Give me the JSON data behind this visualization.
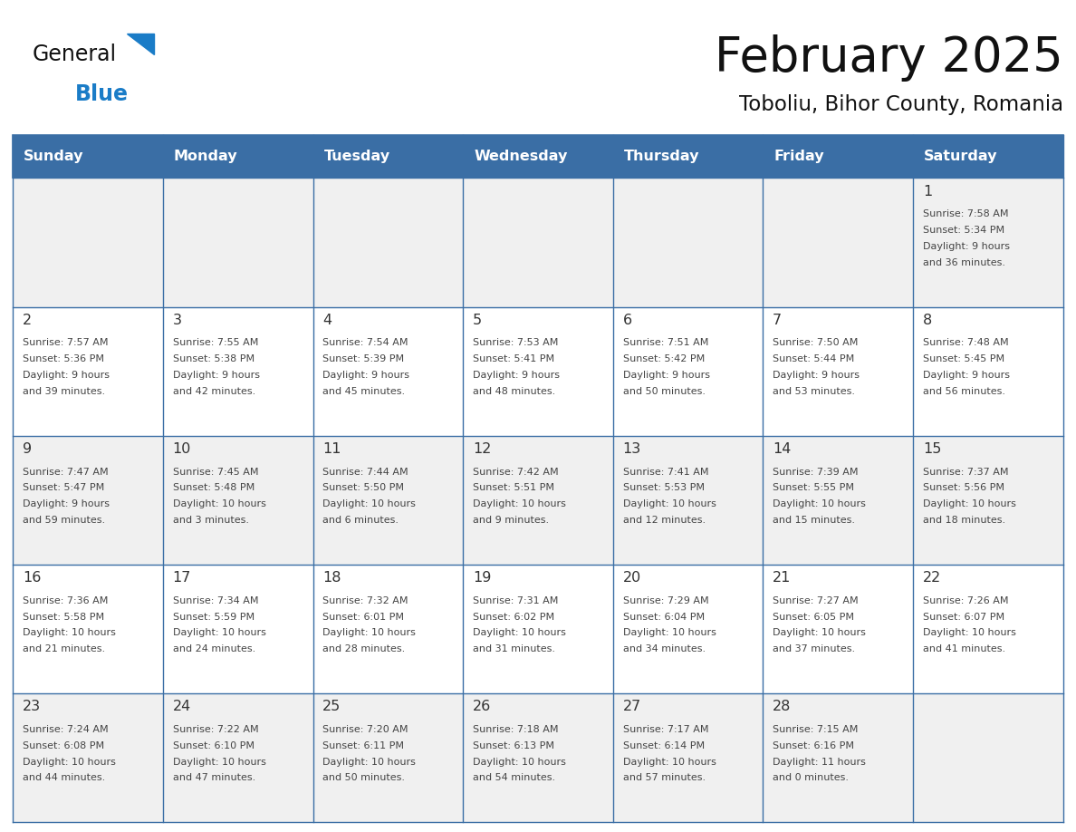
{
  "title": "February 2025",
  "subtitle": "Toboliu, Bihor County, Romania",
  "days_of_week": [
    "Sunday",
    "Monday",
    "Tuesday",
    "Wednesday",
    "Thursday",
    "Friday",
    "Saturday"
  ],
  "header_bg": "#3a6ea5",
  "cell_bg_light": "#f0f0f0",
  "cell_bg_white": "#ffffff",
  "border_color": "#3a6ea5",
  "day_num_color": "#333333",
  "text_color": "#444444",
  "logo_color1": "#111111",
  "logo_color2": "#1a7cc7",
  "logo_triangle_color": "#1a7cc7",
  "calendar": [
    [
      null,
      null,
      null,
      null,
      null,
      null,
      {
        "day": 1,
        "sunrise": "7:58 AM",
        "sunset": "5:34 PM",
        "dl1": "Daylight: 9 hours",
        "dl2": "and 36 minutes."
      }
    ],
    [
      {
        "day": 2,
        "sunrise": "7:57 AM",
        "sunset": "5:36 PM",
        "dl1": "Daylight: 9 hours",
        "dl2": "and 39 minutes."
      },
      {
        "day": 3,
        "sunrise": "7:55 AM",
        "sunset": "5:38 PM",
        "dl1": "Daylight: 9 hours",
        "dl2": "and 42 minutes."
      },
      {
        "day": 4,
        "sunrise": "7:54 AM",
        "sunset": "5:39 PM",
        "dl1": "Daylight: 9 hours",
        "dl2": "and 45 minutes."
      },
      {
        "day": 5,
        "sunrise": "7:53 AM",
        "sunset": "5:41 PM",
        "dl1": "Daylight: 9 hours",
        "dl2": "and 48 minutes."
      },
      {
        "day": 6,
        "sunrise": "7:51 AM",
        "sunset": "5:42 PM",
        "dl1": "Daylight: 9 hours",
        "dl2": "and 50 minutes."
      },
      {
        "day": 7,
        "sunrise": "7:50 AM",
        "sunset": "5:44 PM",
        "dl1": "Daylight: 9 hours",
        "dl2": "and 53 minutes."
      },
      {
        "day": 8,
        "sunrise": "7:48 AM",
        "sunset": "5:45 PM",
        "dl1": "Daylight: 9 hours",
        "dl2": "and 56 minutes."
      }
    ],
    [
      {
        "day": 9,
        "sunrise": "7:47 AM",
        "sunset": "5:47 PM",
        "dl1": "Daylight: 9 hours",
        "dl2": "and 59 minutes."
      },
      {
        "day": 10,
        "sunrise": "7:45 AM",
        "sunset": "5:48 PM",
        "dl1": "Daylight: 10 hours",
        "dl2": "and 3 minutes."
      },
      {
        "day": 11,
        "sunrise": "7:44 AM",
        "sunset": "5:50 PM",
        "dl1": "Daylight: 10 hours",
        "dl2": "and 6 minutes."
      },
      {
        "day": 12,
        "sunrise": "7:42 AM",
        "sunset": "5:51 PM",
        "dl1": "Daylight: 10 hours",
        "dl2": "and 9 minutes."
      },
      {
        "day": 13,
        "sunrise": "7:41 AM",
        "sunset": "5:53 PM",
        "dl1": "Daylight: 10 hours",
        "dl2": "and 12 minutes."
      },
      {
        "day": 14,
        "sunrise": "7:39 AM",
        "sunset": "5:55 PM",
        "dl1": "Daylight: 10 hours",
        "dl2": "and 15 minutes."
      },
      {
        "day": 15,
        "sunrise": "7:37 AM",
        "sunset": "5:56 PM",
        "dl1": "Daylight: 10 hours",
        "dl2": "and 18 minutes."
      }
    ],
    [
      {
        "day": 16,
        "sunrise": "7:36 AM",
        "sunset": "5:58 PM",
        "dl1": "Daylight: 10 hours",
        "dl2": "and 21 minutes."
      },
      {
        "day": 17,
        "sunrise": "7:34 AM",
        "sunset": "5:59 PM",
        "dl1": "Daylight: 10 hours",
        "dl2": "and 24 minutes."
      },
      {
        "day": 18,
        "sunrise": "7:32 AM",
        "sunset": "6:01 PM",
        "dl1": "Daylight: 10 hours",
        "dl2": "and 28 minutes."
      },
      {
        "day": 19,
        "sunrise": "7:31 AM",
        "sunset": "6:02 PM",
        "dl1": "Daylight: 10 hours",
        "dl2": "and 31 minutes."
      },
      {
        "day": 20,
        "sunrise": "7:29 AM",
        "sunset": "6:04 PM",
        "dl1": "Daylight: 10 hours",
        "dl2": "and 34 minutes."
      },
      {
        "day": 21,
        "sunrise": "7:27 AM",
        "sunset": "6:05 PM",
        "dl1": "Daylight: 10 hours",
        "dl2": "and 37 minutes."
      },
      {
        "day": 22,
        "sunrise": "7:26 AM",
        "sunset": "6:07 PM",
        "dl1": "Daylight: 10 hours",
        "dl2": "and 41 minutes."
      }
    ],
    [
      {
        "day": 23,
        "sunrise": "7:24 AM",
        "sunset": "6:08 PM",
        "dl1": "Daylight: 10 hours",
        "dl2": "and 44 minutes."
      },
      {
        "day": 24,
        "sunrise": "7:22 AM",
        "sunset": "6:10 PM",
        "dl1": "Daylight: 10 hours",
        "dl2": "and 47 minutes."
      },
      {
        "day": 25,
        "sunrise": "7:20 AM",
        "sunset": "6:11 PM",
        "dl1": "Daylight: 10 hours",
        "dl2": "and 50 minutes."
      },
      {
        "day": 26,
        "sunrise": "7:18 AM",
        "sunset": "6:13 PM",
        "dl1": "Daylight: 10 hours",
        "dl2": "and 54 minutes."
      },
      {
        "day": 27,
        "sunrise": "7:17 AM",
        "sunset": "6:14 PM",
        "dl1": "Daylight: 10 hours",
        "dl2": "and 57 minutes."
      },
      {
        "day": 28,
        "sunrise": "7:15 AM",
        "sunset": "6:16 PM",
        "dl1": "Daylight: 11 hours",
        "dl2": "and 0 minutes."
      },
      null
    ]
  ]
}
